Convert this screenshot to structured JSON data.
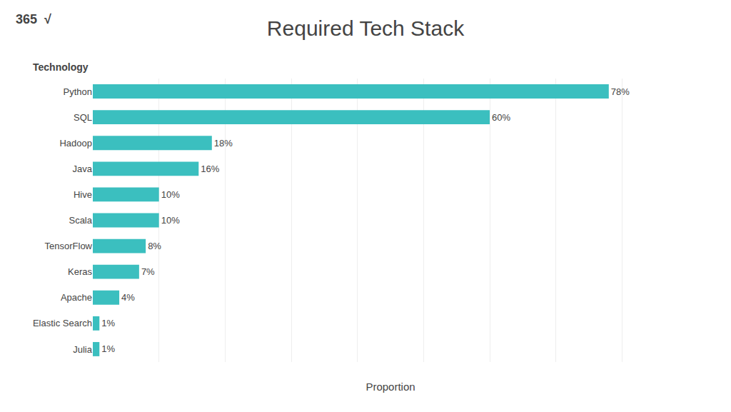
{
  "chart_data": {
    "type": "bar",
    "orientation": "horizontal",
    "title": "Required Tech Stack",
    "xlabel": "Proportion",
    "ylabel": "Technology",
    "categories": [
      "Python",
      "SQL",
      "Hadoop",
      "Java",
      "Hive",
      "Scala",
      "TensorFlow",
      "Keras",
      "Apache",
      "Elastic Search",
      "Julia"
    ],
    "values": [
      78,
      60,
      18,
      16,
      10,
      10,
      8,
      7,
      4,
      1,
      1
    ],
    "value_labels": [
      "78%",
      "60%",
      "18%",
      "16%",
      "10%",
      "10%",
      "8%",
      "7%",
      "4%",
      "1%",
      "1%"
    ],
    "data_labels": true,
    "color": "#3bbfbf",
    "xlim": [
      0,
      90
    ],
    "xticks": [
      0,
      10,
      20,
      30,
      40,
      50,
      60,
      70,
      80,
      90
    ],
    "grid": true,
    "tick_labels": "y",
    "annotations": [
      "365",
      "√"
    ]
  }
}
